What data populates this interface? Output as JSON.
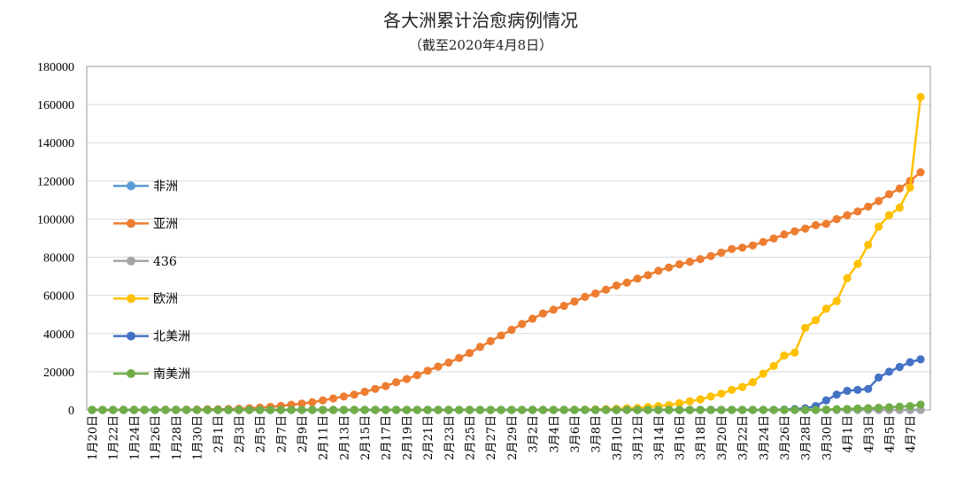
{
  "chart_data": {
    "type": "line",
    "title": "各大洲累计治愈病例情况",
    "subtitle": "（截至2020年4月8日）",
    "xlabel": "",
    "ylabel": "",
    "ylim": [
      0,
      180000
    ],
    "yticks": [
      "0",
      "20000",
      "40000",
      "60000",
      "80000",
      "100000",
      "120000",
      "140000",
      "160000",
      "180000"
    ],
    "grid": true,
    "legend_position": "left",
    "x": [
      "1月20日",
      "1月21日",
      "1月22日",
      "1月23日",
      "1月24日",
      "1月25日",
      "1月26日",
      "1月27日",
      "1月28日",
      "1月29日",
      "1月30日",
      "1月31日",
      "2月1日",
      "2月2日",
      "2月3日",
      "2月4日",
      "2月5日",
      "2月6日",
      "2月7日",
      "2月8日",
      "2月9日",
      "2月10日",
      "2月11日",
      "2月12日",
      "2月13日",
      "2月14日",
      "2月15日",
      "2月16日",
      "2月17日",
      "2月18日",
      "2月19日",
      "2月20日",
      "2月21日",
      "2月22日",
      "2月23日",
      "2月24日",
      "2月25日",
      "2月26日",
      "2月27日",
      "2月28日",
      "2月29日",
      "3月1日",
      "3月2日",
      "3月3日",
      "3月4日",
      "3月5日",
      "3月6日",
      "3月7日",
      "3月8日",
      "3月9日",
      "3月10日",
      "3月11日",
      "3月12日",
      "3月13日",
      "3月14日",
      "3月15日",
      "3月16日",
      "3月17日",
      "3月18日",
      "3月19日",
      "3月20日",
      "3月21日",
      "3月22日",
      "3月23日",
      "3月24日",
      "3月25日",
      "3月26日",
      "3月27日",
      "3月28日",
      "3月29日",
      "3月30日",
      "3月31日",
      "4月1日",
      "4月2日",
      "4月3日",
      "4月4日",
      "4月5日",
      "4月6日",
      "4月7日",
      "4月8日"
    ],
    "xtick_labels": [
      "1月20日",
      "1月22日",
      "1月24日",
      "1月26日",
      "1月28日",
      "1月30日",
      "2月1日",
      "2月3日",
      "2月5日",
      "2月7日",
      "2月9日",
      "2月11日",
      "2月13日",
      "2月15日",
      "2月17日",
      "2月19日",
      "2月21日",
      "2月23日",
      "2月25日",
      "2月27日",
      "2月29日",
      "3月2日",
      "3月4日",
      "3月6日",
      "3月8日",
      "3月10日",
      "3月12日",
      "3月14日",
      "3月16日",
      "3月18日",
      "3月20日",
      "3月22日",
      "3月24日",
      "3月26日",
      "3月28日",
      "3月30日",
      "4月1日",
      "4月3日",
      "4月5日",
      "4月7日"
    ],
    "series": [
      {
        "name": "非洲",
        "color": "#5b9bd5",
        "values": [
          0,
          0,
          0,
          0,
          0,
          0,
          0,
          0,
          0,
          0,
          0,
          0,
          0,
          0,
          0,
          0,
          0,
          0,
          0,
          0,
          0,
          0,
          0,
          0,
          0,
          0,
          0,
          0,
          0,
          0,
          0,
          0,
          0,
          0,
          0,
          0,
          0,
          0,
          0,
          0,
          0,
          0,
          0,
          0,
          0,
          0,
          0,
          0,
          0,
          0,
          0,
          0,
          0,
          0,
          0,
          0,
          0,
          0,
          0,
          0,
          0,
          0,
          0,
          0,
          0,
          0,
          0,
          0,
          0,
          0,
          0,
          0,
          0,
          0,
          0,
          0,
          0,
          0,
          0,
          0
        ]
      },
      {
        "name": "亚洲",
        "color": "#ed7d31",
        "values": [
          0,
          0,
          10,
          30,
          40,
          50,
          60,
          100,
          120,
          150,
          200,
          300,
          350,
          450,
          600,
          900,
          1200,
          1600,
          2100,
          2700,
          3300,
          4000,
          5000,
          6000,
          7000,
          8000,
          9500,
          11000,
          12500,
          14500,
          16200,
          18200,
          20500,
          22700,
          24800,
          27200,
          29800,
          33000,
          36000,
          39000,
          42000,
          45000,
          47800,
          50500,
          52500,
          54500,
          56800,
          59200,
          61000,
          63000,
          65200,
          66700,
          68800,
          70600,
          72900,
          74600,
          76300,
          77600,
          79000,
          80600,
          82400,
          84300,
          85000,
          86200,
          88000,
          89800,
          91900,
          93600,
          95000,
          96800,
          97500,
          100000,
          102000,
          104000,
          106500,
          109500,
          113000,
          116000,
          120000,
          124500
        ]
      },
      {
        "name": "436",
        "color": "#a5a5a5",
        "values": [
          0,
          0,
          0,
          0,
          0,
          0,
          0,
          0,
          0,
          0,
          0,
          0,
          0,
          0,
          0,
          0,
          0,
          0,
          0,
          0,
          0,
          0,
          0,
          0,
          0,
          0,
          0,
          0,
          0,
          0,
          0,
          0,
          0,
          0,
          0,
          0,
          0,
          0,
          0,
          0,
          0,
          0,
          0,
          0,
          0,
          0,
          0,
          0,
          0,
          0,
          0,
          0,
          0,
          0,
          0,
          0,
          0,
          0,
          0,
          0,
          0,
          0,
          0,
          0,
          0,
          0,
          0,
          0,
          0,
          0,
          0,
          0,
          0,
          0,
          0,
          0,
          0,
          0,
          0,
          0
        ]
      },
      {
        "name": "欧洲",
        "color": "#ffc000",
        "values": [
          0,
          0,
          0,
          0,
          0,
          0,
          0,
          0,
          0,
          0,
          0,
          0,
          0,
          0,
          0,
          0,
          0,
          0,
          0,
          0,
          0,
          0,
          0,
          0,
          0,
          0,
          0,
          0,
          0,
          0,
          0,
          0,
          0,
          0,
          0,
          0,
          0,
          0,
          0,
          0,
          0,
          0,
          0,
          0,
          0,
          0,
          100,
          200,
          300,
          400,
          600,
          800,
          1000,
          1500,
          2000,
          2500,
          3500,
          4500,
          5500,
          7000,
          8500,
          10500,
          12000,
          14500,
          19000,
          23000,
          28500,
          30000,
          43000,
          47000,
          53000,
          57000,
          69000,
          76500,
          86500,
          96000,
          102000,
          106000,
          116500,
          164000
        ]
      },
      {
        "name": "北美洲",
        "color": "#4472c4",
        "values": [
          0,
          0,
          0,
          0,
          0,
          0,
          0,
          0,
          0,
          0,
          0,
          0,
          0,
          0,
          0,
          0,
          0,
          0,
          0,
          0,
          0,
          0,
          0,
          0,
          0,
          0,
          0,
          0,
          0,
          0,
          0,
          0,
          0,
          0,
          0,
          0,
          0,
          0,
          0,
          0,
          0,
          0,
          0,
          0,
          0,
          0,
          0,
          0,
          0,
          0,
          0,
          0,
          0,
          0,
          0,
          0,
          0,
          0,
          0,
          0,
          0,
          0,
          0,
          0,
          0,
          0,
          200,
          400,
          800,
          2000,
          5000,
          8000,
          10000,
          10500,
          11000,
          17000,
          20000,
          22500,
          25000,
          26500
        ]
      },
      {
        "name": "南美洲",
        "color": "#70ad47",
        "values": [
          0,
          0,
          0,
          0,
          0,
          0,
          0,
          0,
          0,
          0,
          0,
          0,
          0,
          0,
          0,
          0,
          0,
          0,
          0,
          0,
          0,
          0,
          0,
          0,
          0,
          0,
          0,
          0,
          0,
          0,
          0,
          0,
          0,
          0,
          0,
          0,
          0,
          0,
          0,
          0,
          0,
          0,
          0,
          0,
          0,
          0,
          0,
          0,
          0,
          0,
          0,
          0,
          0,
          0,
          0,
          0,
          0,
          0,
          0,
          0,
          0,
          0,
          0,
          0,
          0,
          0,
          0,
          0,
          0,
          0,
          200,
          400,
          500,
          700,
          900,
          1100,
          1400,
          1700,
          2000,
          2800
        ]
      }
    ]
  }
}
